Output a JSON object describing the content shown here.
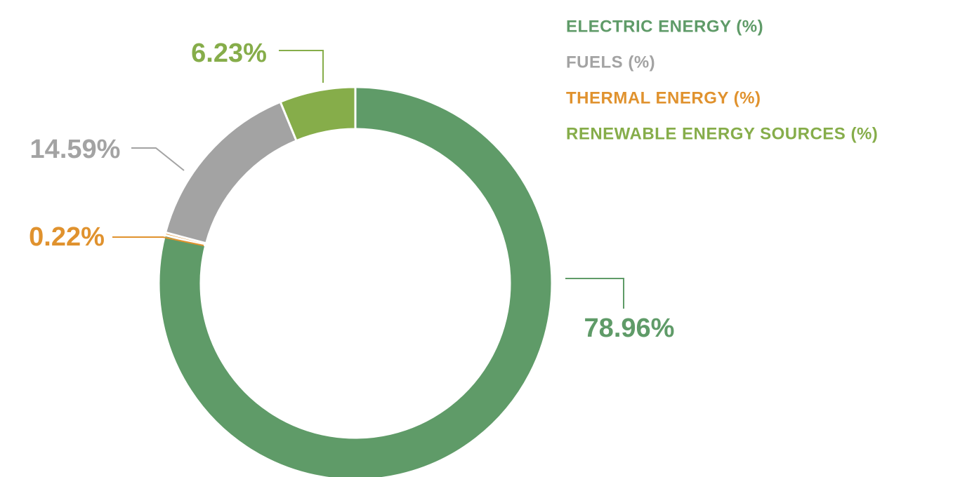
{
  "chart_data": {
    "type": "pie",
    "donut": true,
    "categories": [
      "ELECTRIC ENERGY (%)",
      "FUELS (%)",
      "THERMAL ENERGY (%)",
      "RENEWABLE ENERGY SOURCES (%)"
    ],
    "values": [
      78.96,
      14.59,
      0.22,
      6.23
    ],
    "value_labels": [
      "78.96%",
      "14.59%",
      "0.22%",
      "6.23%"
    ],
    "colors": [
      "#5f9b68",
      "#a3a3a3",
      "#e0922e",
      "#86ad4a"
    ]
  }
}
